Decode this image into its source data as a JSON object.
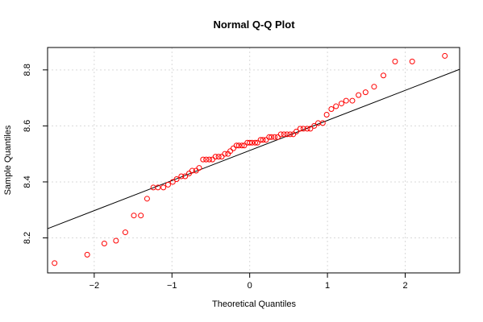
{
  "chart_data": {
    "type": "scatter",
    "title": "Normal Q-Q Plot",
    "xlabel": "Theoretical Quantiles",
    "ylabel": "Sample Quantiles",
    "xlim": [
      -2.6,
      2.7
    ],
    "ylim": [
      8.075,
      8.88
    ],
    "x_ticks": [
      -2,
      -1,
      0,
      1,
      2
    ],
    "x_tick_labels": [
      "−2",
      "−1",
      "0",
      "1",
      "2"
    ],
    "y_ticks": [
      8.2,
      8.4,
      8.6,
      8.8
    ],
    "y_tick_labels": [
      "8.2",
      "8.4",
      "8.6",
      "8.8"
    ],
    "grid": true,
    "point_color": "#ff0000",
    "line_color": "#000000",
    "reference_line": {
      "x": [
        -2.6,
        2.7
      ],
      "y": [
        8.233,
        8.802
      ]
    },
    "points": [
      [
        -2.51,
        8.11
      ],
      [
        -2.09,
        8.14
      ],
      [
        -1.87,
        8.18
      ],
      [
        -1.72,
        8.19
      ],
      [
        -1.6,
        8.22
      ],
      [
        -1.49,
        8.28
      ],
      [
        -1.4,
        8.28
      ],
      [
        -1.32,
        8.34
      ],
      [
        -1.24,
        8.38
      ],
      [
        -1.18,
        8.38
      ],
      [
        -1.11,
        8.38
      ],
      [
        -1.05,
        8.39
      ],
      [
        -0.99,
        8.4
      ],
      [
        -0.94,
        8.41
      ],
      [
        -0.88,
        8.42
      ],
      [
        -0.83,
        8.42
      ],
      [
        -0.78,
        8.43
      ],
      [
        -0.74,
        8.44
      ],
      [
        -0.69,
        8.44
      ],
      [
        -0.65,
        8.45
      ],
      [
        -0.6,
        8.48
      ],
      [
        -0.56,
        8.48
      ],
      [
        -0.52,
        8.48
      ],
      [
        -0.48,
        8.48
      ],
      [
        -0.44,
        8.49
      ],
      [
        -0.4,
        8.49
      ],
      [
        -0.36,
        8.49
      ],
      [
        -0.32,
        8.5
      ],
      [
        -0.28,
        8.5
      ],
      [
        -0.25,
        8.51
      ],
      [
        -0.21,
        8.52
      ],
      [
        -0.17,
        8.53
      ],
      [
        -0.14,
        8.53
      ],
      [
        -0.1,
        8.53
      ],
      [
        -0.07,
        8.53
      ],
      [
        -0.03,
        8.54
      ],
      [
        0.0,
        8.54
      ],
      [
        0.03,
        8.54
      ],
      [
        0.07,
        8.54
      ],
      [
        0.1,
        8.54
      ],
      [
        0.14,
        8.55
      ],
      [
        0.17,
        8.55
      ],
      [
        0.21,
        8.55
      ],
      [
        0.25,
        8.56
      ],
      [
        0.28,
        8.56
      ],
      [
        0.32,
        8.56
      ],
      [
        0.36,
        8.56
      ],
      [
        0.4,
        8.57
      ],
      [
        0.44,
        8.57
      ],
      [
        0.48,
        8.57
      ],
      [
        0.52,
        8.57
      ],
      [
        0.56,
        8.57
      ],
      [
        0.6,
        8.58
      ],
      [
        0.65,
        8.59
      ],
      [
        0.69,
        8.59
      ],
      [
        0.74,
        8.59
      ],
      [
        0.78,
        8.59
      ],
      [
        0.83,
        8.6
      ],
      [
        0.88,
        8.61
      ],
      [
        0.94,
        8.61
      ],
      [
        0.99,
        8.64
      ],
      [
        1.05,
        8.66
      ],
      [
        1.11,
        8.67
      ],
      [
        1.18,
        8.68
      ],
      [
        1.24,
        8.69
      ],
      [
        1.32,
        8.69
      ],
      [
        1.4,
        8.71
      ],
      [
        1.49,
        8.72
      ],
      [
        1.6,
        8.74
      ],
      [
        1.72,
        8.78
      ],
      [
        1.87,
        8.83
      ],
      [
        2.09,
        8.83
      ],
      [
        2.51,
        8.85
      ]
    ]
  }
}
